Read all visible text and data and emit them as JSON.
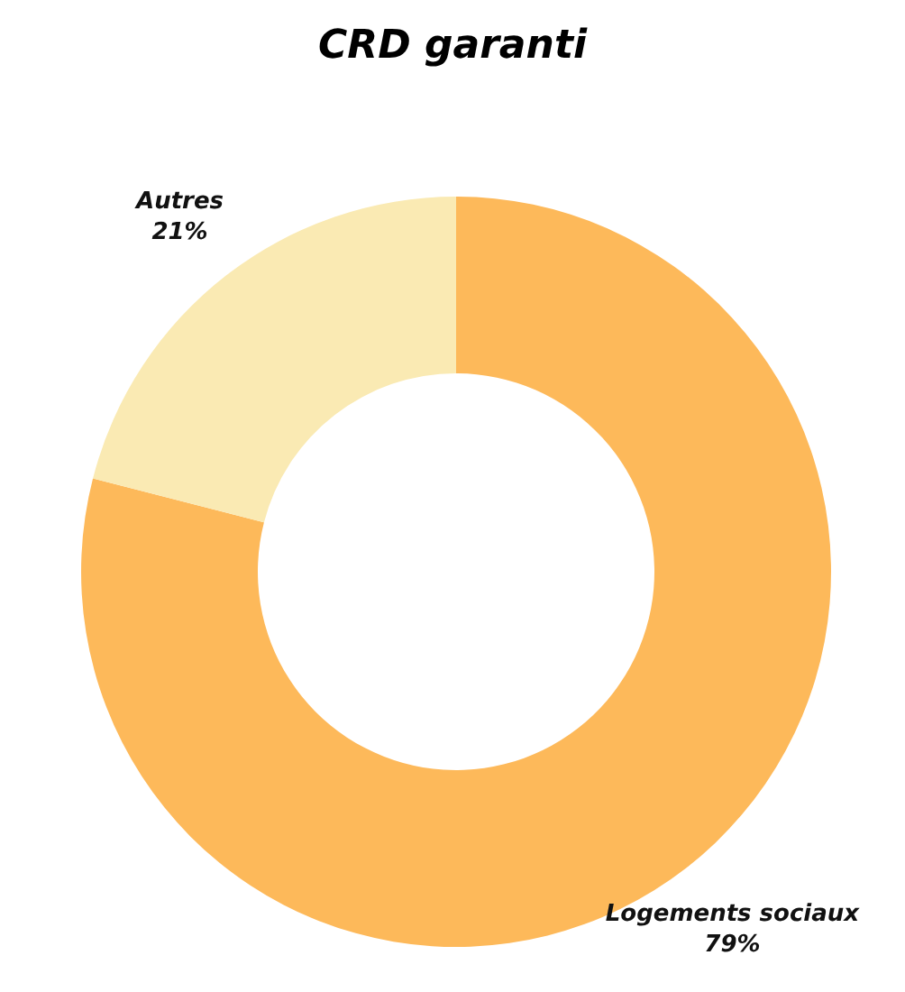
{
  "chart_data": {
    "type": "donut",
    "title": "CRD garanti",
    "categories": [
      "Logements sociaux",
      "Autres"
    ],
    "values": [
      79,
      21
    ],
    "colors": [
      "#fdb95a",
      "#faeab3"
    ],
    "value_labels": [
      "79%",
      "21%"
    ]
  }
}
